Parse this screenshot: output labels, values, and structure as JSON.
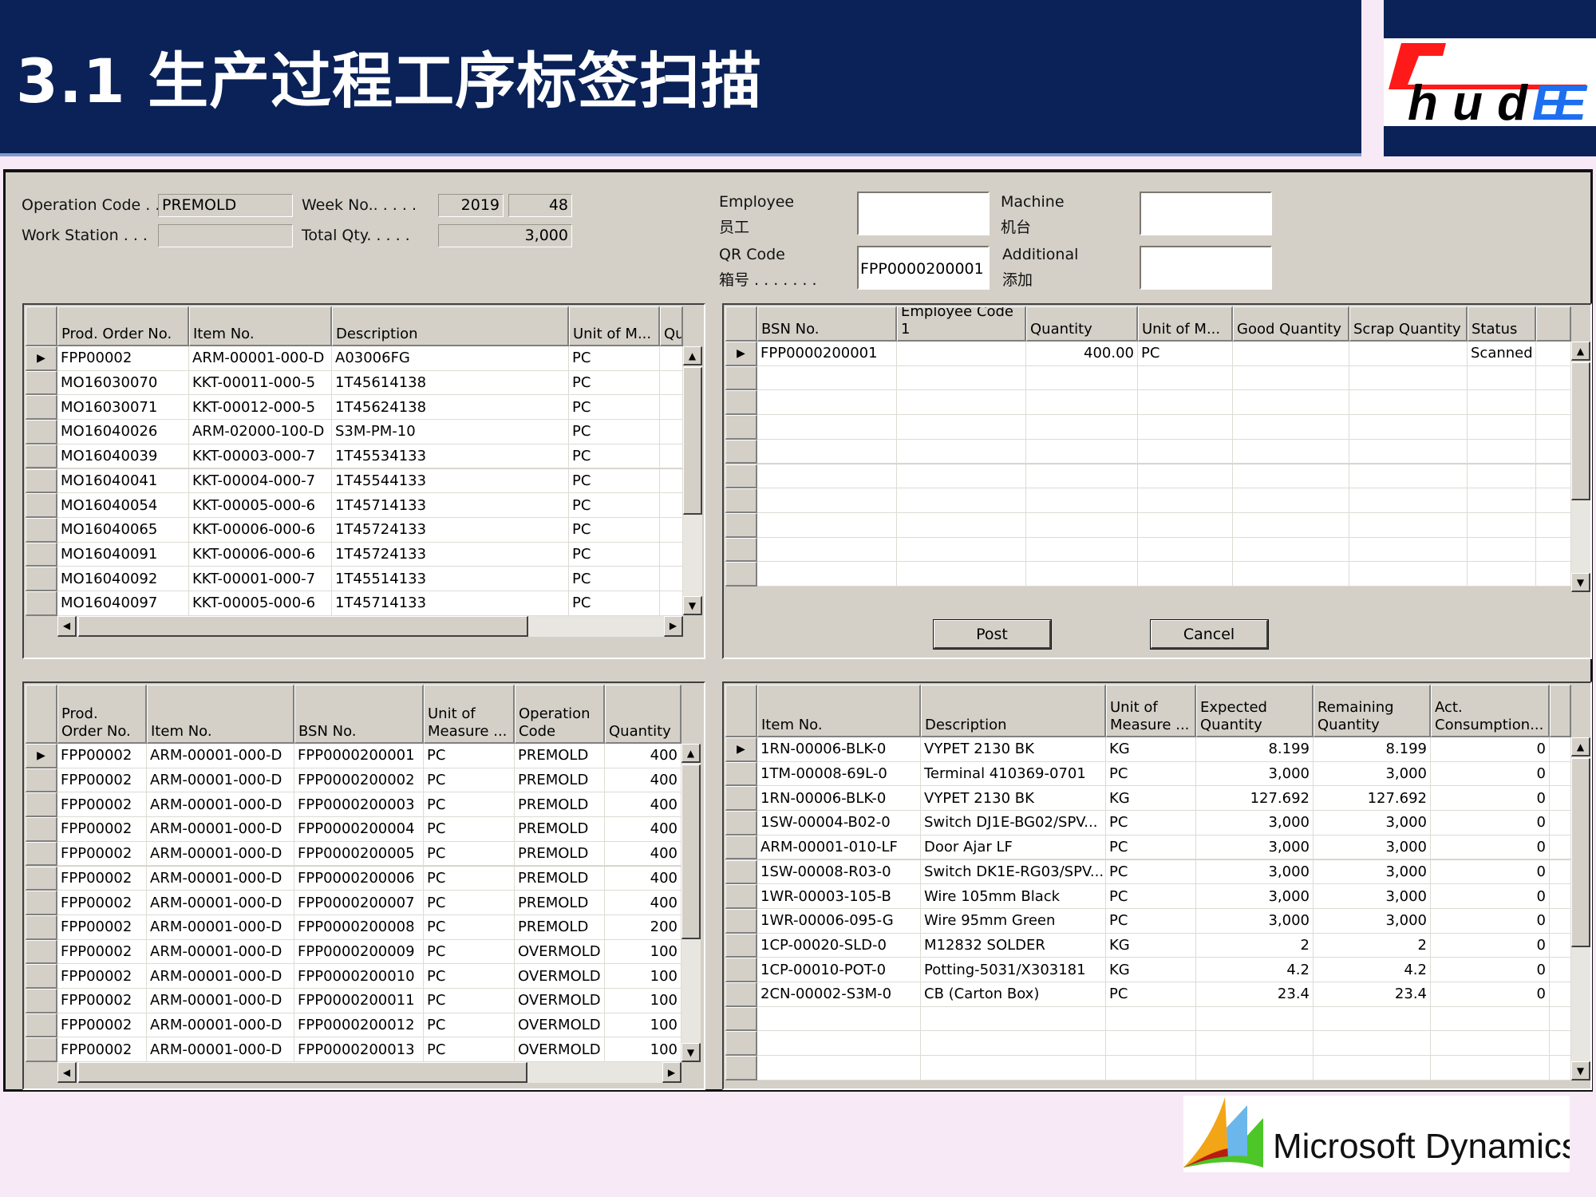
{
  "header": {
    "title": "3.1 生产过程工序标签扫描",
    "logo_text": "ChudEE",
    "colors": {
      "banner": "#0a2257",
      "logo_red": "#ff1a1a",
      "logo_blue": "#1e6ff0"
    }
  },
  "form": {
    "operation_code_label": "Operation Code . .",
    "operation_code_value": "PREMOLD",
    "work_station_label": "Work Station . . .",
    "work_station_value": "",
    "week_no_label": "Week No.. . . . .",
    "week_year": "2019",
    "week_no": "48",
    "total_qty_label": "Total Qty. . . . .",
    "total_qty": "3,000",
    "employee_label": "Employee",
    "employee_label_cn": "员工",
    "employee_value": "",
    "machine_label": "Machine",
    "machine_label_cn": "机台",
    "machine_value": "",
    "qr_label": "QR Code",
    "qr_label_cn": "箱号 . . . . . . .",
    "qr_value": "FPP0000200001",
    "additional_label": "Additional",
    "additional_label_cn": "添加",
    "additional_value": ""
  },
  "orders_grid": {
    "headers": [
      "Prod. Order No.",
      "Item No.",
      "Description",
      "Unit of M...",
      "Qu"
    ],
    "rows": [
      [
        "FPP00002",
        "ARM-00001-000-D",
        "A03006FG",
        "PC",
        ""
      ],
      [
        "MO16030070",
        "KKT-00011-000-5",
        "1T45614138",
        "PC",
        ""
      ],
      [
        "MO16030071",
        "KKT-00012-000-5",
        "1T45624138",
        "PC",
        ""
      ],
      [
        "MO16040026",
        "ARM-02000-100-D",
        "S3M-PM-10",
        "PC",
        ""
      ],
      [
        "MO16040039",
        "KKT-00003-000-7",
        "1T45534133",
        "PC",
        ""
      ],
      [
        "MO16040041",
        "KKT-00004-000-7",
        "1T45544133",
        "PC",
        ""
      ],
      [
        "MO16040054",
        "KKT-00005-000-6",
        "1T45714133",
        "PC",
        ""
      ],
      [
        "MO16040065",
        "KKT-00006-000-6",
        "1T45724133",
        "PC",
        ""
      ],
      [
        "MO16040091",
        "KKT-00006-000-6",
        "1T45724133",
        "PC",
        ""
      ],
      [
        "MO16040092",
        "KKT-00001-000-7",
        "1T45514133",
        "PC",
        ""
      ],
      [
        "MO16040097",
        "KKT-00005-000-6",
        "1T45714133",
        "PC",
        ""
      ]
    ]
  },
  "scan_grid": {
    "headers": [
      "BSN No.",
      "Employee Code 1",
      "Quantity",
      "Unit of M...",
      "Good Quantity",
      "Scrap Quantity",
      "Status",
      ""
    ],
    "rows": [
      [
        "FPP0000200001",
        "",
        "400.00",
        "PC",
        "",
        "",
        "Scanned",
        ""
      ]
    ]
  },
  "buttons": {
    "post": "Post",
    "cancel": "Cancel"
  },
  "bsn_grid": {
    "headers": [
      "Prod. Order No.",
      "Item No.",
      "BSN No.",
      "Unit of Measure ...",
      "Operation Code",
      "Quantity"
    ],
    "rows": [
      [
        "FPP00002",
        "ARM-00001-000-D",
        "FPP0000200001",
        "PC",
        "PREMOLD",
        "400"
      ],
      [
        "FPP00002",
        "ARM-00001-000-D",
        "FPP0000200002",
        "PC",
        "PREMOLD",
        "400"
      ],
      [
        "FPP00002",
        "ARM-00001-000-D",
        "FPP0000200003",
        "PC",
        "PREMOLD",
        "400"
      ],
      [
        "FPP00002",
        "ARM-00001-000-D",
        "FPP0000200004",
        "PC",
        "PREMOLD",
        "400"
      ],
      [
        "FPP00002",
        "ARM-00001-000-D",
        "FPP0000200005",
        "PC",
        "PREMOLD",
        "400"
      ],
      [
        "FPP00002",
        "ARM-00001-000-D",
        "FPP0000200006",
        "PC",
        "PREMOLD",
        "400"
      ],
      [
        "FPP00002",
        "ARM-00001-000-D",
        "FPP0000200007",
        "PC",
        "PREMOLD",
        "400"
      ],
      [
        "FPP00002",
        "ARM-00001-000-D",
        "FPP0000200008",
        "PC",
        "PREMOLD",
        "200"
      ],
      [
        "FPP00002",
        "ARM-00001-000-D",
        "FPP0000200009",
        "PC",
        "OVERMOLD",
        "100"
      ],
      [
        "FPP00002",
        "ARM-00001-000-D",
        "FPP0000200010",
        "PC",
        "OVERMOLD",
        "100"
      ],
      [
        "FPP00002",
        "ARM-00001-000-D",
        "FPP0000200011",
        "PC",
        "OVERMOLD",
        "100"
      ],
      [
        "FPP00002",
        "ARM-00001-000-D",
        "FPP0000200012",
        "PC",
        "OVERMOLD",
        "100"
      ],
      [
        "FPP00002",
        "ARM-00001-000-D",
        "FPP0000200013",
        "PC",
        "OVERMOLD",
        "100"
      ]
    ]
  },
  "component_grid": {
    "headers": [
      "Item No.",
      "Description",
      "Unit of Measure ...",
      "Expected Quantity",
      "Remaining Quantity",
      "Act. Consumption...",
      ""
    ],
    "rows": [
      [
        "1RN-00006-BLK-0",
        "VYPET 2130 BK",
        "KG",
        "8.199",
        "8.199",
        "0",
        ""
      ],
      [
        "1TM-00008-69L-0",
        "Terminal 410369-0701",
        "PC",
        "3,000",
        "3,000",
        "0",
        ""
      ],
      [
        "1RN-00006-BLK-0",
        "VYPET 2130 BK",
        "KG",
        "127.692",
        "127.692",
        "0",
        ""
      ],
      [
        "1SW-00004-B02-0",
        "Switch DJ1E-BG02/SPV...",
        "PC",
        "3,000",
        "3,000",
        "0",
        ""
      ],
      [
        "ARM-00001-010-LF",
        "Door Ajar LF",
        "PC",
        "3,000",
        "3,000",
        "0",
        ""
      ],
      [
        "1SW-00008-R03-0",
        "Switch DK1E-RG03/SPV...",
        "PC",
        "3,000",
        "3,000",
        "0",
        ""
      ],
      [
        "1WR-00003-105-B",
        "Wire 105mm Black",
        "PC",
        "3,000",
        "3,000",
        "0",
        ""
      ],
      [
        "1WR-00006-095-G",
        "Wire 95mm Green",
        "PC",
        "3,000",
        "3,000",
        "0",
        ""
      ],
      [
        "1CP-00020-SLD-0",
        "M12832 SOLDER",
        "KG",
        "2",
        "2",
        "0",
        ""
      ],
      [
        "1CP-00010-POT-0",
        "Potting-5031/X303181",
        "KG",
        "4.2",
        "4.2",
        "0",
        ""
      ],
      [
        "2CN-00002-S3M-0",
        "CB (Carton Box)",
        "PC",
        "23.4",
        "23.4",
        "0",
        ""
      ]
    ]
  },
  "footer": {
    "ms_logo_text": "Microsoft Dynamics"
  }
}
